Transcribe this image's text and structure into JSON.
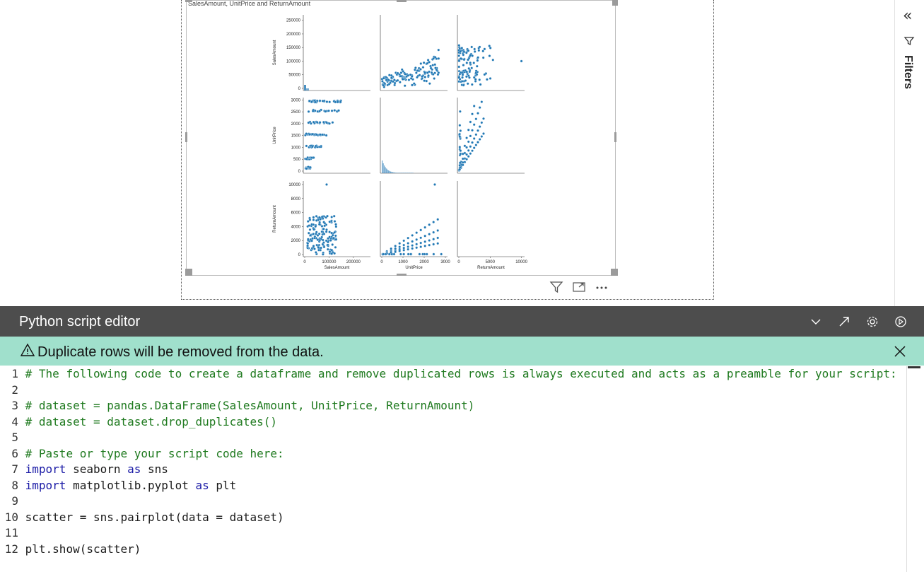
{
  "visual": {
    "title": "SalesAmount, UnitPrice and ReturnAmount",
    "actions": [
      "filter-icon",
      "focus-mode-icon",
      "more-options-icon"
    ]
  },
  "filters_pane": {
    "label": "Filters",
    "collapse_icon": "double-chevron-left-icon",
    "filter_icon": "funnel-icon"
  },
  "editor": {
    "title": "Python script editor",
    "icons": [
      "chevron-down-icon",
      "expand-arrow-icon",
      "gear-icon",
      "run-icon"
    ],
    "banner": "Duplicate rows will be removed from the data.",
    "lines": [
      {
        "n": "1",
        "parts": [
          {
            "t": "# The following code to create a dataframe and remove duplicated rows is always executed and acts as a preamble for your script:",
            "c": "cm"
          }
        ]
      },
      {
        "n": "2",
        "parts": []
      },
      {
        "n": "3",
        "parts": [
          {
            "t": "# dataset = pandas.DataFrame(SalesAmount, UnitPrice, ReturnAmount)",
            "c": "cm"
          }
        ]
      },
      {
        "n": "4",
        "parts": [
          {
            "t": "# dataset = dataset.drop_duplicates()",
            "c": "cm"
          }
        ]
      },
      {
        "n": "5",
        "parts": []
      },
      {
        "n": "6",
        "parts": [
          {
            "t": "# Paste or type your script code here:",
            "c": "cm"
          }
        ]
      },
      {
        "n": "7",
        "parts": [
          {
            "t": "import",
            "c": "kw"
          },
          {
            "t": " seaborn ",
            "c": "tx"
          },
          {
            "t": "as",
            "c": "kw"
          },
          {
            "t": " sns",
            "c": "tx"
          }
        ]
      },
      {
        "n": "8",
        "parts": [
          {
            "t": "import",
            "c": "kw"
          },
          {
            "t": " matplotlib.pyplot ",
            "c": "tx"
          },
          {
            "t": "as",
            "c": "kw"
          },
          {
            "t": " plt",
            "c": "tx"
          }
        ]
      },
      {
        "n": "9",
        "parts": []
      },
      {
        "n": "10",
        "parts": [
          {
            "t": "scatter = sns.pairplot(data = dataset)",
            "c": "tx"
          }
        ]
      },
      {
        "n": "11",
        "parts": []
      },
      {
        "n": "12",
        "parts": [
          {
            "t": "plt.show(scatter)",
            "c": "tx"
          }
        ]
      }
    ]
  },
  "chart_data": {
    "type": "scatter",
    "title": "SalesAmount, UnitPrice and ReturnAmount",
    "variables": [
      "SalesAmount",
      "UnitPrice",
      "ReturnAmount"
    ],
    "color": "#1f77b4",
    "axes": {
      "SalesAmount": {
        "ticks": [
          "0",
          "50000",
          "100000",
          "150000",
          "200000",
          "250000"
        ],
        "bottom_ticks": [
          "0",
          "100000",
          "200000"
        ],
        "range": [
          0,
          270000
        ]
      },
      "UnitPrice": {
        "ticks": [
          "0",
          "500",
          "1000",
          "1500",
          "2000",
          "2500",
          "3000"
        ],
        "bottom_ticks": [
          "0",
          "1000",
          "2000",
          "3000"
        ],
        "range": [
          0,
          3100
        ]
      },
      "ReturnAmount": {
        "ticks": [
          "0",
          "2000",
          "4000",
          "6000",
          "8000",
          "10000"
        ],
        "bottom_ticks": [
          "0",
          "5000",
          "10000"
        ],
        "range": [
          0,
          10500
        ]
      }
    },
    "diagonal": "histogram",
    "ylabels": [
      "SalesAmount",
      "UnitPrice",
      "ReturnAmount"
    ],
    "xlabels": [
      "SalesAmount",
      "UnitPrice",
      "ReturnAmount"
    ],
    "grid": false
  }
}
